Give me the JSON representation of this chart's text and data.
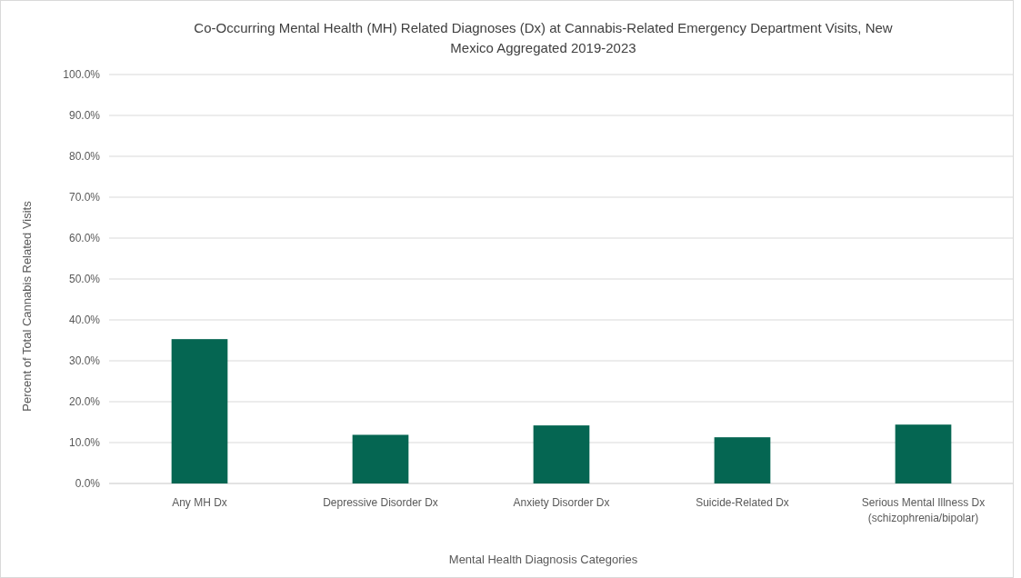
{
  "chart_data": {
    "type": "bar",
    "title": "Co-Occurring Mental Health (MH) Related Diagnoses (Dx) at Cannabis-Related Emergency Department Visits, New Mexico Aggregated 2019-2023",
    "xlabel": "Mental Health Diagnosis Categories",
    "ylabel": "Percent of Total Cannabis Related Visits",
    "categories": [
      "Any MH Dx",
      "Depressive Disorder Dx",
      "Anxiety Disorder Dx",
      "Suicide-Related Dx",
      "Serious Mental Illness Dx\n(schizophrenia/bipolar)"
    ],
    "values": [
      35.3,
      11.9,
      14.2,
      11.3,
      14.4
    ],
    "color": "#056652",
    "ylim": [
      0,
      100
    ],
    "yticks": [
      {
        "value": 0,
        "label": "0.0%"
      },
      {
        "value": 10,
        "label": "10.0%"
      },
      {
        "value": 20,
        "label": "20.0%"
      },
      {
        "value": 30,
        "label": "30.0%"
      },
      {
        "value": 40,
        "label": "40.0%"
      },
      {
        "value": 50,
        "label": "50.0%"
      },
      {
        "value": 60,
        "label": "60.0%"
      },
      {
        "value": 70,
        "label": "70.0%"
      },
      {
        "value": 80,
        "label": "80.0%"
      },
      {
        "value": 90,
        "label": "90.0%"
      },
      {
        "value": 100,
        "label": "100.0%"
      }
    ],
    "grid": "y"
  }
}
